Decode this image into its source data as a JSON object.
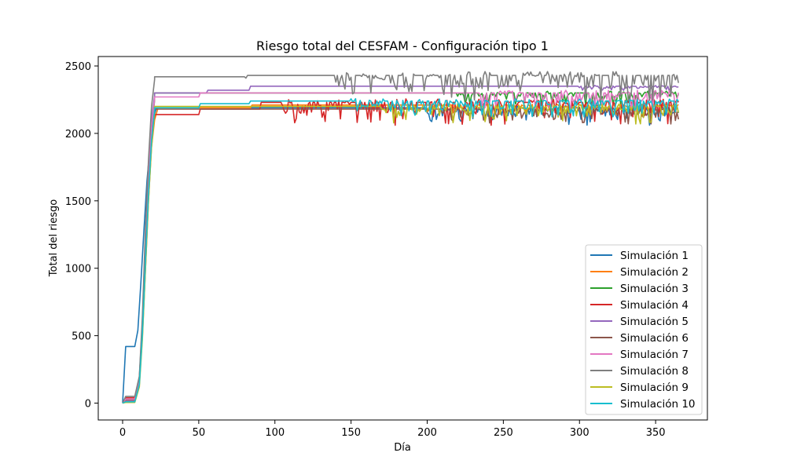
{
  "chart_data": {
    "type": "line",
    "title": "Riesgo total del CESFAM - Configuración tipo 1",
    "xlabel": "Día",
    "ylabel": "Total del riesgo",
    "xlim": [
      -16,
      384
    ],
    "ylim": [
      -125,
      2570
    ],
    "xticks": [
      0,
      50,
      100,
      150,
      200,
      250,
      300,
      350
    ],
    "yticks": [
      0,
      500,
      1000,
      1500,
      2000,
      2500
    ],
    "legend_position": "lower right",
    "grid": false,
    "series": [
      {
        "name": "Simulación 1",
        "color": "#1f77b4",
        "ramp": [
          [
            0,
            0
          ],
          [
            2,
            420
          ],
          [
            8,
            420
          ],
          [
            10,
            540
          ],
          [
            12,
            900
          ],
          [
            14,
            1280
          ],
          [
            16,
            1650
          ],
          [
            18,
            1900
          ],
          [
            20,
            2100
          ],
          [
            22,
            2180
          ]
        ],
        "plateau": [
          [
            22,
            2190
          ],
          [
            365,
            2190
          ]
        ],
        "noise": {
          "start": 200,
          "amp": 130,
          "seed": 11
        }
      },
      {
        "name": "Simulación 2",
        "color": "#ff7f0e",
        "ramp": [
          [
            0,
            0
          ],
          [
            2,
            20
          ],
          [
            8,
            20
          ],
          [
            11,
            150
          ],
          [
            13,
            500
          ],
          [
            15,
            1000
          ],
          [
            17,
            1500
          ],
          [
            19,
            1900
          ],
          [
            21,
            2100
          ],
          [
            23,
            2180
          ]
        ],
        "plateau": [
          [
            23,
            2190
          ],
          [
            84,
            2190
          ],
          [
            85,
            2210
          ],
          [
            365,
            2210
          ]
        ],
        "noise": {
          "start": 210,
          "amp": 70,
          "seed": 22
        }
      },
      {
        "name": "Simulación 3",
        "color": "#2ca02c",
        "ramp": [
          [
            0,
            0
          ],
          [
            2,
            10
          ],
          [
            8,
            10
          ],
          [
            11,
            160
          ],
          [
            13,
            550
          ],
          [
            15,
            1100
          ],
          [
            17,
            1600
          ],
          [
            19,
            2000
          ],
          [
            21,
            2250
          ]
        ],
        "plateau": [
          [
            21,
            2300
          ],
          [
            365,
            2300
          ]
        ],
        "noise": {
          "start": 220,
          "amp": 90,
          "seed": 33
        }
      },
      {
        "name": "Simulación 4",
        "color": "#d62728",
        "ramp": [
          [
            0,
            0
          ],
          [
            2,
            40
          ],
          [
            8,
            40
          ],
          [
            11,
            190
          ],
          [
            13,
            600
          ],
          [
            15,
            1200
          ],
          [
            17,
            1700
          ],
          [
            19,
            2020
          ],
          [
            21,
            2120
          ]
        ],
        "plateau": [
          [
            21,
            2140
          ],
          [
            50,
            2140
          ],
          [
            51,
            2180
          ],
          [
            90,
            2180
          ],
          [
            91,
            2230
          ],
          [
            365,
            2230
          ]
        ],
        "noise": {
          "start": 105,
          "amp": 170,
          "seed": 44
        }
      },
      {
        "name": "Simulación 5",
        "color": "#9467bd",
        "ramp": [
          [
            0,
            0
          ],
          [
            2,
            15
          ],
          [
            8,
            15
          ],
          [
            11,
            150
          ],
          [
            13,
            560
          ],
          [
            15,
            1150
          ],
          [
            17,
            1700
          ],
          [
            19,
            2100
          ],
          [
            21,
            2280
          ]
        ],
        "plateau": [
          [
            21,
            2300
          ],
          [
            55,
            2300
          ],
          [
            56,
            2320
          ],
          [
            83,
            2320
          ],
          [
            84,
            2350
          ],
          [
            365,
            2350
          ]
        ],
        "noise": {
          "start": 300,
          "amp": 40,
          "seed": 55
        }
      },
      {
        "name": "Simulación 6",
        "color": "#8c564b",
        "ramp": [
          [
            0,
            0
          ],
          [
            2,
            25
          ],
          [
            8,
            25
          ],
          [
            11,
            160
          ],
          [
            13,
            570
          ],
          [
            15,
            1150
          ],
          [
            17,
            1650
          ],
          [
            19,
            2000
          ],
          [
            21,
            2150
          ]
        ],
        "plateau": [
          [
            21,
            2180
          ],
          [
            365,
            2180
          ]
        ],
        "noise": {
          "start": 210,
          "amp": 110,
          "seed": 66
        }
      },
      {
        "name": "Simulación 7",
        "color": "#e377c2",
        "ramp": [
          [
            0,
            0
          ],
          [
            2,
            30
          ],
          [
            8,
            30
          ],
          [
            11,
            170
          ],
          [
            13,
            590
          ],
          [
            15,
            1180
          ],
          [
            17,
            1700
          ],
          [
            19,
            2050
          ],
          [
            21,
            2250
          ]
        ],
        "plateau": [
          [
            21,
            2270
          ],
          [
            50,
            2270
          ],
          [
            51,
            2300
          ],
          [
            365,
            2300
          ]
        ],
        "noise": {
          "start": 235,
          "amp": 150,
          "seed": 77
        }
      },
      {
        "name": "Simulación 8",
        "color": "#7f7f7f",
        "ramp": [
          [
            0,
            0
          ],
          [
            2,
            50
          ],
          [
            8,
            50
          ],
          [
            11,
            200
          ],
          [
            13,
            650
          ],
          [
            15,
            1300
          ],
          [
            17,
            1800
          ],
          [
            19,
            2200
          ],
          [
            21,
            2400
          ]
        ],
        "plateau": [
          [
            21,
            2420
          ],
          [
            80,
            2420
          ],
          [
            81,
            2410
          ],
          [
            82,
            2430
          ],
          [
            365,
            2430
          ]
        ],
        "noise": {
          "start": 140,
          "amp": 190,
          "seed": 88
        }
      },
      {
        "name": "Simulación 9",
        "color": "#bcbd22",
        "ramp": [
          [
            0,
            0
          ],
          [
            2,
            5
          ],
          [
            8,
            5
          ],
          [
            11,
            120
          ],
          [
            13,
            480
          ],
          [
            15,
            1000
          ],
          [
            17,
            1500
          ],
          [
            19,
            1900
          ],
          [
            21,
            2150
          ]
        ],
        "plateau": [
          [
            21,
            2200
          ],
          [
            365,
            2200
          ]
        ],
        "noise": {
          "start": 170,
          "amp": 130,
          "seed": 99
        }
      },
      {
        "name": "Simulación 10",
        "color": "#17becf",
        "ramp": [
          [
            0,
            0
          ],
          [
            2,
            10
          ],
          [
            8,
            10
          ],
          [
            11,
            140
          ],
          [
            13,
            520
          ],
          [
            15,
            1050
          ],
          [
            17,
            1550
          ],
          [
            19,
            1950
          ],
          [
            21,
            2170
          ]
        ],
        "plateau": [
          [
            21,
            2190
          ],
          [
            50,
            2190
          ],
          [
            51,
            2220
          ],
          [
            83,
            2220
          ],
          [
            84,
            2240
          ],
          [
            365,
            2240
          ]
        ],
        "noise": {
          "start": 150,
          "amp": 120,
          "seed": 1010
        }
      }
    ]
  }
}
